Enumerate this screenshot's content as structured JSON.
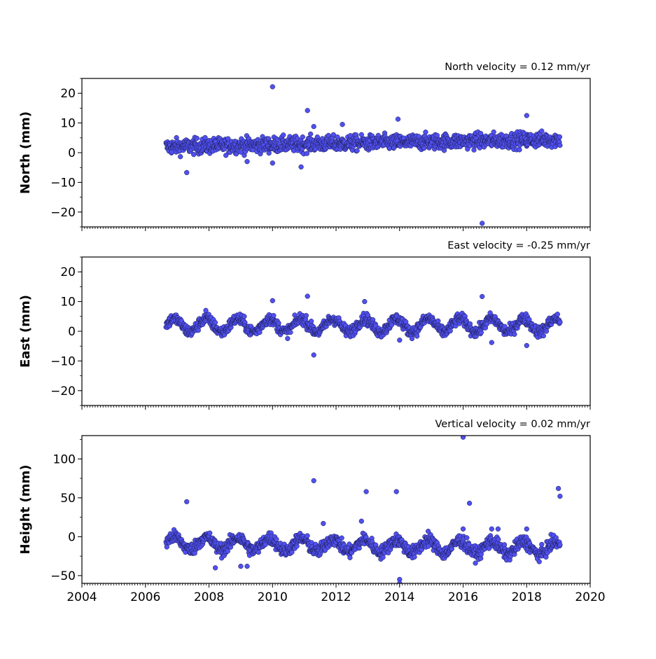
{
  "chart_data": [
    {
      "type": "scatter",
      "title": "North velocity = 0.12 mm/yr",
      "ylabel": "North (mm)",
      "xlabel": "",
      "xlim": [
        2004,
        2020
      ],
      "ylim": [
        -25,
        25
      ],
      "yticks": [
        -20,
        -10,
        0,
        10,
        20
      ],
      "xticks": [
        2004,
        2006,
        2008,
        2010,
        2012,
        2014,
        2016,
        2018,
        2020
      ],
      "show_xtick_labels": false,
      "series": [
        {
          "trend": {
            "t0": 2006.65,
            "t1": 2019.05,
            "y0": 2.0,
            "y1": 4.5,
            "noise": 2.2
          },
          "outliers": [
            [
              2007.3,
              -6.7
            ],
            [
              2009.2,
              -3.0
            ],
            [
              2010.0,
              22.2
            ],
            [
              2010.0,
              -3.5
            ],
            [
              2010.9,
              -4.8
            ],
            [
              2011.1,
              14.2
            ],
            [
              2011.3,
              8.8
            ],
            [
              2012.2,
              9.5
            ],
            [
              2013.95,
              11.3
            ],
            [
              2016.6,
              -23.8
            ],
            [
              2018.0,
              12.5
            ]
          ]
        }
      ]
    },
    {
      "type": "scatter",
      "title": "East velocity = -0.25 mm/yr",
      "ylabel": "East (mm)",
      "xlabel": "",
      "xlim": [
        2004,
        2020
      ],
      "ylim": [
        -25,
        25
      ],
      "yticks": [
        -20,
        -10,
        0,
        10,
        20
      ],
      "xticks": [
        2004,
        2006,
        2008,
        2010,
        2012,
        2014,
        2016,
        2018,
        2020
      ],
      "show_xtick_labels": false,
      "series": [
        {
          "trend": {
            "t0": 2006.65,
            "t1": 2019.05,
            "y0": 2.0,
            "y1": 2.0,
            "noise": 1.6,
            "wave": 2.2
          },
          "outliers": [
            [
              2007.9,
              7.0
            ],
            [
              2010.0,
              10.3
            ],
            [
              2011.1,
              11.8
            ],
            [
              2011.3,
              -8.0
            ],
            [
              2012.9,
              10.0
            ],
            [
              2016.6,
              11.7
            ],
            [
              2016.9,
              -3.8
            ],
            [
              2018.0,
              -4.8
            ],
            [
              2014.0,
              -3.0
            ]
          ]
        }
      ]
    },
    {
      "type": "scatter",
      "title": "Vertical velocity = 0.02 mm/yr",
      "ylabel": "Height (mm)",
      "xlabel": "",
      "xlim": [
        2004,
        2020
      ],
      "ylim": [
        -60,
        130
      ],
      "yticks": [
        -50,
        0,
        50,
        100
      ],
      "xticks": [
        2004,
        2006,
        2008,
        2010,
        2012,
        2014,
        2016,
        2018,
        2020
      ],
      "show_xtick_labels": true,
      "series": [
        {
          "trend": {
            "t0": 2006.65,
            "t1": 2019.05,
            "y0": -8.0,
            "y1": -15.0,
            "noise": 7.0,
            "wave": 8.0
          },
          "outliers": [
            [
              2007.3,
              45.0
            ],
            [
              2011.3,
              72.0
            ],
            [
              2011.6,
              17.0
            ],
            [
              2012.8,
              20.0
            ],
            [
              2012.95,
              58.0
            ],
            [
              2013.9,
              58.0
            ],
            [
              2014.0,
              -55.0
            ],
            [
              2014.0,
              -60.0
            ],
            [
              2014.9,
              7.0
            ],
            [
              2016.0,
              128.0
            ],
            [
              2016.0,
              10.0
            ],
            [
              2016.2,
              43.0
            ],
            [
              2016.9,
              10.0
            ],
            [
              2017.1,
              10.0
            ],
            [
              2018.0,
              10.0
            ],
            [
              2019.0,
              62.0
            ],
            [
              2019.05,
              52.0
            ],
            [
              2008.2,
              -40.0
            ],
            [
              2009.0,
              -38.0
            ],
            [
              2009.2,
              -38.0
            ]
          ]
        }
      ]
    }
  ],
  "style": {
    "marker_fill": "#5050f0",
    "marker_stroke": "#1a1a4a"
  }
}
